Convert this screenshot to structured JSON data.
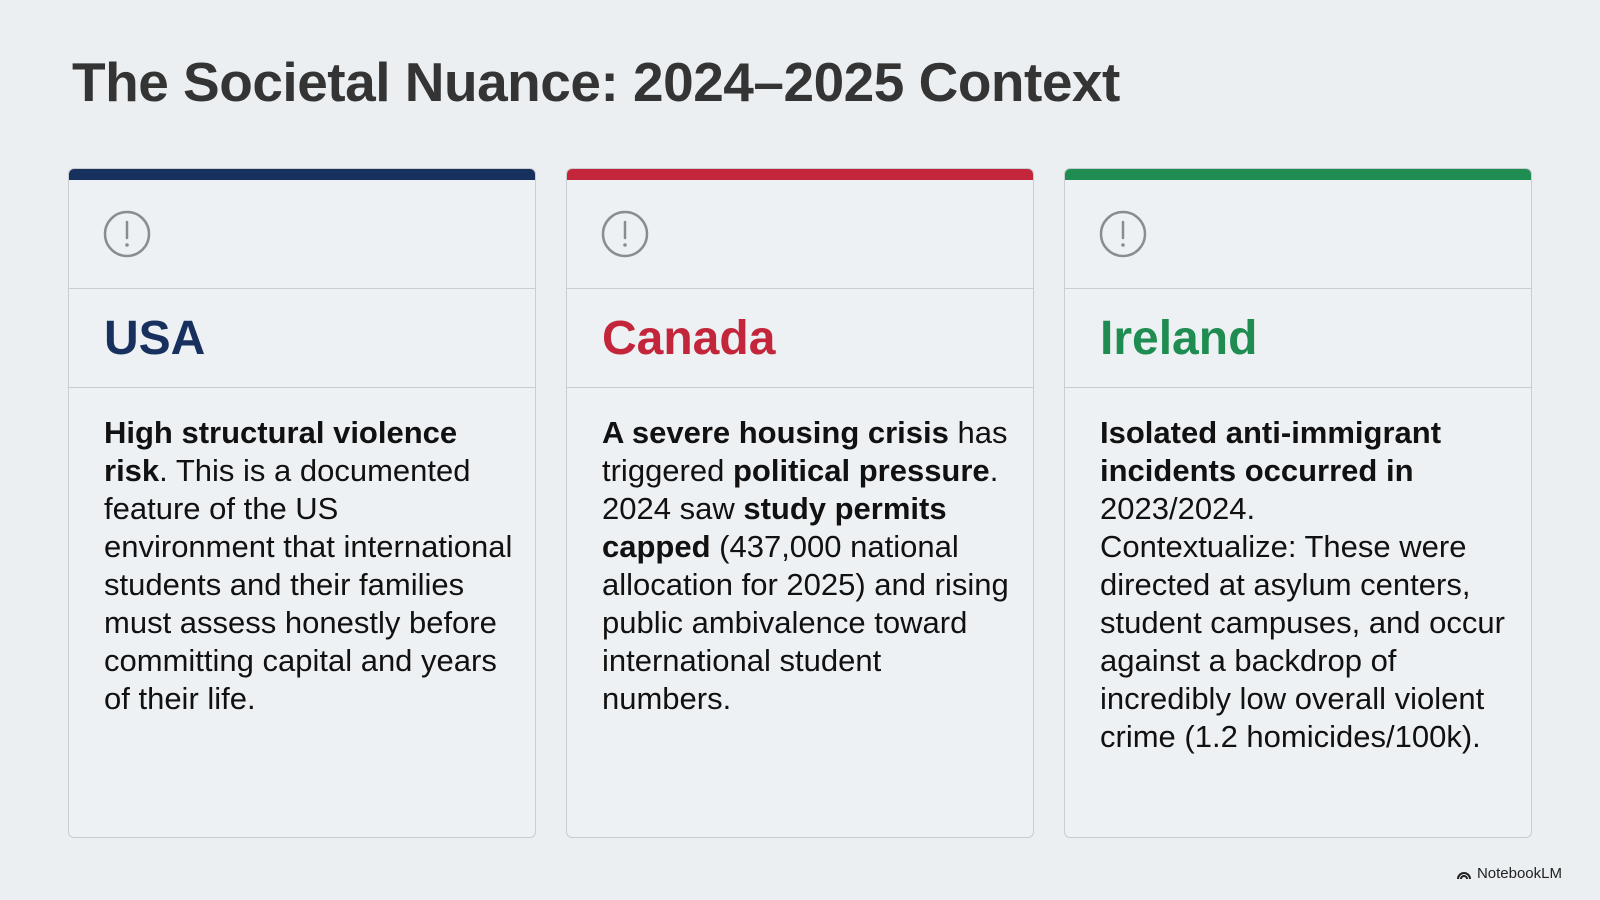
{
  "header": {
    "title": "The Societal Nuance: 2024–2025 Context"
  },
  "cards": [
    {
      "name": "USA",
      "accent": "#17305e",
      "paragraphs": [
        [
          {
            "text": "High structural violence risk",
            "bold": true
          },
          {
            "text": ". This is a documented feature of the US environment that international students and their families must assess honestly before committing capital and years of their life.",
            "bold": false
          }
        ]
      ]
    },
    {
      "name": "Canada",
      "accent": "#c3263b",
      "paragraphs": [
        [
          {
            "text": "A severe housing crisis",
            "bold": true
          },
          {
            "text": " has triggered ",
            "bold": false
          },
          {
            "text": "political pressure",
            "bold": true
          },
          {
            "text": ". 2024 saw ",
            "bold": false
          },
          {
            "text": "study permits capped",
            "bold": true
          },
          {
            "text": " (437,000 national allocation for 2025) and rising public ambivalence toward international student numbers.",
            "bold": false
          }
        ]
      ]
    },
    {
      "name": "Ireland",
      "accent": "#1f8c52",
      "paragraphs": [
        [
          {
            "text": "Isolated anti-immigrant incidents occurred in",
            "bold": true
          },
          {
            "text": " 2023/2024.",
            "bold": false
          }
        ],
        [
          {
            "text": "Contextualize: These were directed at asylum centers, student campuses, and occur against a backdrop of incredibly low overall violent crime (1.2 homicides/100k).",
            "bold": false
          }
        ]
      ]
    }
  ],
  "footer": {
    "brand": "NotebookLM"
  }
}
